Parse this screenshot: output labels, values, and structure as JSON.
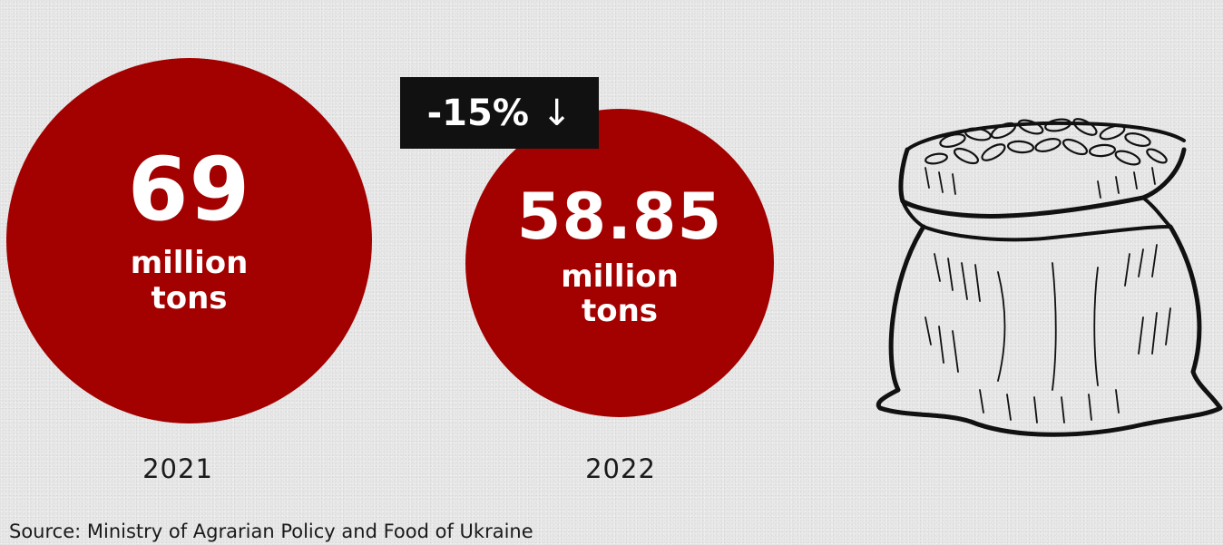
{
  "colors": {
    "accent": "#a30000",
    "badge_background": "#111111",
    "text_dark": "#1a1a1a"
  },
  "chart_data": {
    "type": "bubble",
    "unit": "million tons",
    "categories": [
      "2021",
      "2022"
    ],
    "values": [
      69,
      58.85
    ],
    "value_labels": [
      "69",
      "58.85"
    ],
    "unit_label": "million\ntons",
    "change_label": "-15%",
    "change_arrow": "↓"
  },
  "source": "Source: Ministry of Agrarian Policy and Food of Ukraine",
  "illustration": "grain-sack-icon"
}
